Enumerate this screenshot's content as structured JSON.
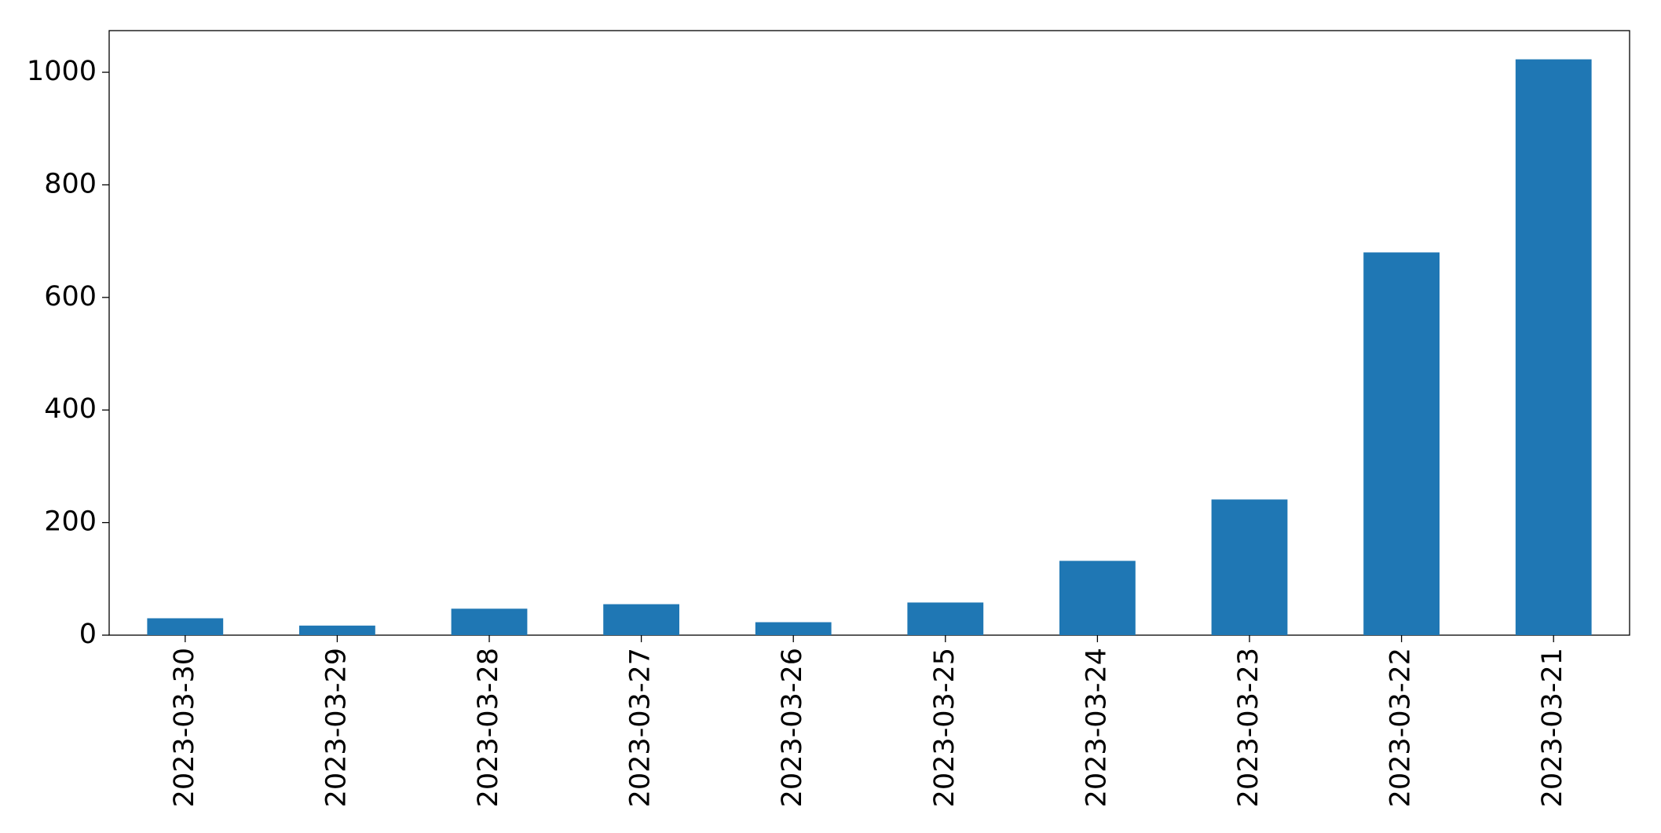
{
  "chart_data": {
    "type": "bar",
    "categories": [
      "2023-03-30",
      "2023-03-29",
      "2023-03-28",
      "2023-03-27",
      "2023-03-26",
      "2023-03-25",
      "2023-03-24",
      "2023-03-23",
      "2023-03-22",
      "2023-03-21"
    ],
    "values": [
      30,
      17,
      47,
      55,
      23,
      58,
      132,
      241,
      680,
      1023
    ],
    "color": "#1f77b4",
    "ylim": [
      0,
      1074
    ],
    "yticks": [
      0,
      200,
      400,
      600,
      800,
      1000
    ],
    "grid": false
  }
}
